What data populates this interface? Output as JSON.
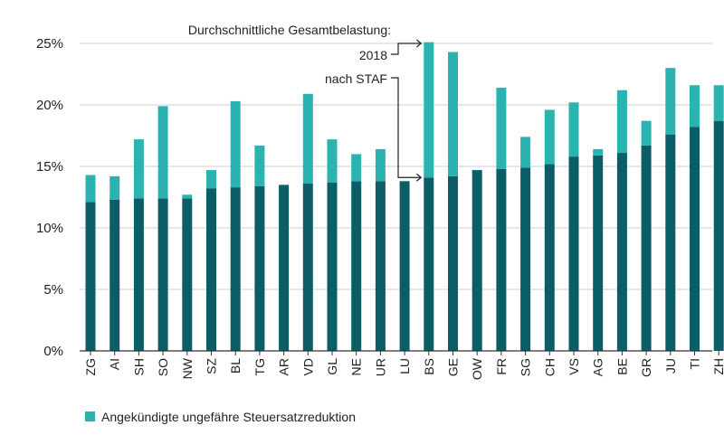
{
  "chart_data": {
    "type": "bar",
    "stacked": true,
    "categories": [
      "ZG",
      "AI",
      "SH",
      "SO",
      "NW",
      "SZ",
      "BL",
      "TG",
      "AR",
      "VD",
      "GL",
      "NE",
      "UR",
      "LU",
      "BS",
      "GE",
      "OW",
      "FR",
      "SG",
      "CH",
      "VS",
      "AG",
      "BE",
      "GR",
      "JU",
      "TI",
      "ZH"
    ],
    "series": [
      {
        "values": [
          12.1,
          12.3,
          12.4,
          12.4,
          12.4,
          13.2,
          13.3,
          13.4,
          13.5,
          13.6,
          13.7,
          13.8,
          13.8,
          13.8,
          14.1,
          14.2,
          14.7,
          14.8,
          14.9,
          15.2,
          15.8,
          15.9,
          16.1,
          16.7,
          17.6,
          18.2,
          18.7
        ],
        "color": "#0b5e66"
      },
      {
        "name": "Angekündigte ungefähre Steuersatzreduktion",
        "values": [
          2.2,
          1.9,
          4.8,
          7.5,
          0.3,
          1.5,
          7.0,
          3.3,
          0.0,
          7.3,
          3.5,
          2.2,
          2.6,
          0.0,
          11.0,
          10.1,
          0.0,
          6.6,
          2.5,
          4.4,
          4.4,
          0.5,
          5.1,
          2.0,
          5.4,
          3.4,
          2.9
        ],
        "color": "#2ab3b1"
      }
    ],
    "ylim": [
      0,
      25
    ],
    "yticks": [
      0,
      5,
      10,
      15,
      20,
      25
    ],
    "ytick_labels": [
      "0%",
      "5%",
      "10%",
      "15%",
      "20%",
      "25%"
    ],
    "grid": "horizontal",
    "legend_position": "bottom-left",
    "legend_label": "Angekündigte ungefähre Steuersatzreduktion",
    "annotation": {
      "heading": "Durchschnittliche Gesamtbelastung:",
      "label_2018": "2018",
      "label_staf": "nach STAF"
    }
  }
}
